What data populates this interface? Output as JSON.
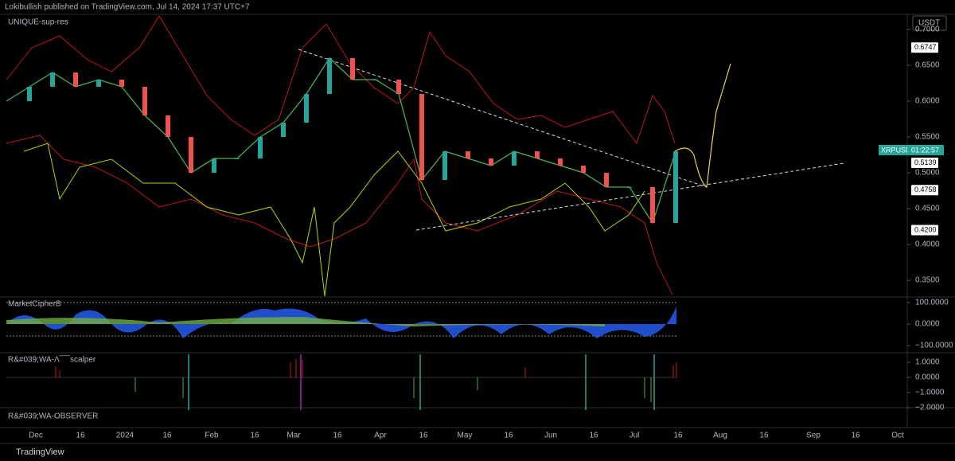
{
  "header": {
    "publisher": "Lokibullish published on TradingView.com, Jul 14, 2024 17:37 UTC+7"
  },
  "main_panel": {
    "indicator": "UNIQUE-sup-res",
    "currency": "USDT",
    "ylim": [
      0.3267,
      0.7211
    ],
    "yticks": [
      {
        "value": 0.7,
        "label": "0.7000"
      },
      {
        "value": 0.65,
        "label": "0.6500"
      },
      {
        "value": 0.6,
        "label": "0.6000"
      },
      {
        "value": 0.55,
        "label": "0.5500"
      },
      {
        "value": 0.5,
        "label": "0.5000"
      },
      {
        "value": 0.45,
        "label": "0.4500"
      },
      {
        "value": 0.4,
        "label": "0.4000"
      },
      {
        "value": 0.35,
        "label": "0.3500"
      }
    ],
    "price_labels": [
      0.6747,
      0.5139,
      0.4758,
      {
        "value": 0.42,
        "label": "0.4200"
      }
    ],
    "symbol": "XRPUSDT",
    "countdown": "01:22:57",
    "price": [
      0.6,
      0.62,
      0.64,
      0.62,
      0.63,
      0.62,
      0.58,
      0.55,
      0.5,
      0.52,
      0.52,
      0.55,
      0.57,
      0.61,
      0.66,
      0.63,
      0.63,
      0.61,
      0.49,
      0.53,
      0.52,
      0.51,
      0.53,
      0.52,
      0.51,
      0.5,
      0.48,
      0.48,
      0.43,
      0.53
    ]
  },
  "oscillator_panel": {
    "name": "MarketCipherB",
    "ylim": [
      -133,
      122
    ],
    "yticks": [
      {
        "value": 100,
        "label": "100.0000"
      },
      {
        "value": 0,
        "label": "0.0000"
      },
      {
        "value": -100,
        "label": "−100.0000"
      }
    ]
  },
  "scalper_panel": {
    "name": "R&#039;WA-Λ‾‾‾‾scalper",
    "ylim": [
      -2,
      1.63
    ],
    "yticks": [
      {
        "value": 1,
        "label": "1.0000"
      },
      {
        "value": 0,
        "label": "0.0000"
      },
      {
        "value": -1,
        "label": "−1.0000"
      },
      {
        "value": -2,
        "label": "−2.0000"
      }
    ]
  },
  "observer_panel": {
    "name": "R&#039;WA-OBSERVER"
  },
  "time_axis": [
    "Dec",
    "16",
    "2024",
    "16",
    "Feb",
    "16",
    "Mar",
    "16",
    "Apr",
    "16",
    "May",
    "16",
    "Jun",
    "16",
    "Jul",
    "16",
    "Aug",
    "16",
    "Sep",
    "16",
    "Oct"
  ],
  "footer": {
    "brand": "TradingView"
  }
}
